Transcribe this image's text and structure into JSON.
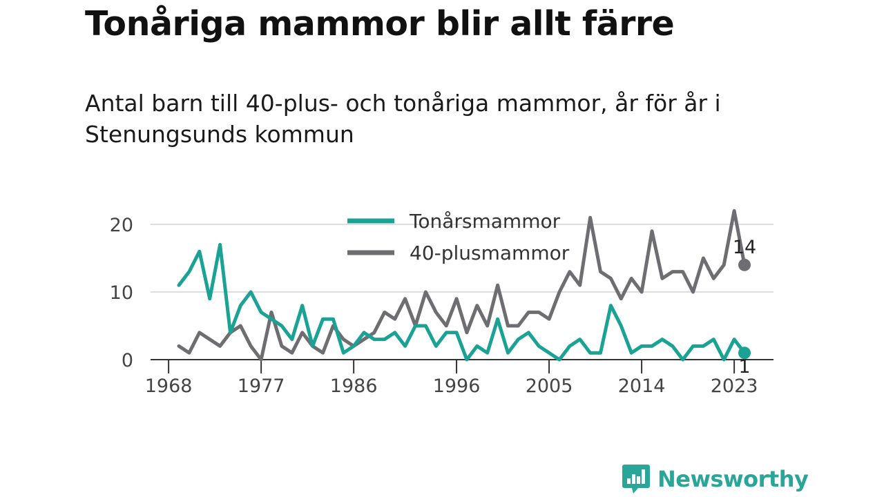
{
  "header": {
    "title": "Tonåriga mammor blir allt färre",
    "subtitle": "Antal barn till 40-plus- och tonåriga mammor, år för år i Stenungsunds kommun"
  },
  "brand": {
    "name": "Newsworthy",
    "icon": "newsworthy-logo-icon"
  },
  "chart_data": {
    "type": "line",
    "x_start": 1969,
    "x_ticks": [
      "1968",
      "1977",
      "1986",
      "1996",
      "2005",
      "2014",
      "2023"
    ],
    "y_ticks": [
      "0",
      "10",
      "20"
    ],
    "ylim": [
      0,
      23
    ],
    "grid": true,
    "legend_position": "top-center",
    "end_labels": {
      "teen": "1",
      "plus40": "14"
    },
    "series": [
      {
        "key": "teen",
        "name": "Tonårsmammor",
        "color": "#1aa295",
        "values": [
          11,
          13,
          16,
          9,
          17,
          4,
          8,
          10,
          7,
          6,
          5,
          3,
          8,
          2,
          6,
          6,
          1,
          2,
          4,
          3,
          3,
          4,
          2,
          5,
          5,
          2,
          4,
          4,
          0,
          2,
          1,
          6,
          1,
          3,
          4,
          2,
          1,
          0,
          2,
          3,
          1,
          1,
          8,
          5,
          1,
          2,
          2,
          3,
          2,
          0,
          2,
          2,
          3,
          0,
          3,
          1
        ]
      },
      {
        "key": "plus40",
        "name": "40-plusmammor",
        "color": "#6d6d72",
        "values": [
          2,
          1,
          4,
          3,
          2,
          4,
          5,
          2,
          0,
          7,
          2,
          1,
          4,
          2,
          1,
          5,
          3,
          2,
          3,
          4,
          7,
          6,
          9,
          5,
          10,
          7,
          5,
          9,
          4,
          8,
          5,
          11,
          5,
          5,
          7,
          7,
          6,
          10,
          13,
          11,
          21,
          13,
          12,
          9,
          12,
          10,
          19,
          12,
          13,
          13,
          10,
          15,
          12,
          14,
          22,
          14
        ]
      }
    ]
  }
}
